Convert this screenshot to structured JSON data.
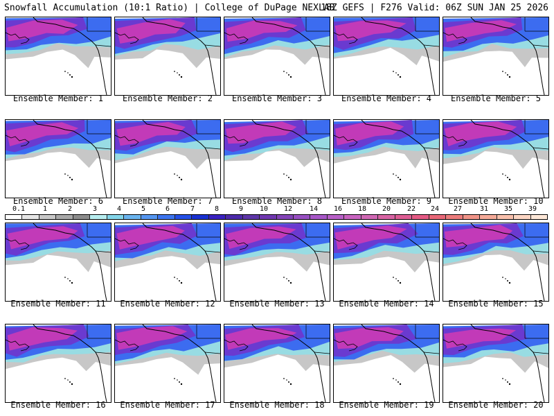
{
  "header": {
    "title": "Snowfall Accumulation (10:1 Ratio) | College of DuPage NEXLAB",
    "valid": "18Z GEFS | F276 Valid: 06Z SUN JAN 25 2026"
  },
  "members": [
    "Ensemble Member: 1",
    "Ensemble Member: 2",
    "Ensemble Member: 3",
    "Ensemble Member: 4",
    "Ensemble Member: 5",
    "Ensemble Member: 6",
    "Ensemble Member: 7",
    "Ensemble Member: 8",
    "Ensemble Member: 9",
    "Ensemble Member: 10",
    "Ensemble Member: 11",
    "Ensemble Member: 12",
    "Ensemble Member: 13",
    "Ensemble Member: 14",
    "Ensemble Member: 15",
    "Ensemble Member: 16",
    "Ensemble Member: 17",
    "Ensemble Member: 18",
    "Ensemble Member: 19",
    "Ensemble Member: 20"
  ],
  "legend": {
    "ticks": [
      "0.1",
      "1",
      "2",
      "3",
      "4",
      "5",
      "6",
      "7",
      "8",
      "9",
      "10",
      "12",
      "14",
      "16",
      "18",
      "20",
      "22",
      "24",
      "27",
      "31",
      "35",
      "39"
    ],
    "colors": [
      "#ffffff",
      "#e6e6e6",
      "#c8c8c8",
      "#a9a9a9",
      "#8c8c8c",
      "#b8eef0",
      "#84d6ea",
      "#6ab4ee",
      "#5596f0",
      "#3c74ee",
      "#2450e6",
      "#1830d0",
      "#3a22c0",
      "#4c2aaa",
      "#5e36a8",
      "#7038b0",
      "#8444b8",
      "#9850c2",
      "#a858c8",
      "#b860c8",
      "#c864c0",
      "#d068b4",
      "#d864a4",
      "#de5e94",
      "#e45a84",
      "#e86878",
      "#ec7c7c",
      "#f09488",
      "#f4aa98",
      "#f8c0ac",
      "#fcd6c4",
      "#fee8d8"
    ]
  },
  "colors": {
    "snow_heavy": "#c23ab8",
    "snow_moderate": "#6a3ad0",
    "snow_light": "#3c6cf0",
    "snow_trace": "#8fdfe8",
    "snow_gray": "#b4b4b4",
    "land_outline": "#000000"
  }
}
